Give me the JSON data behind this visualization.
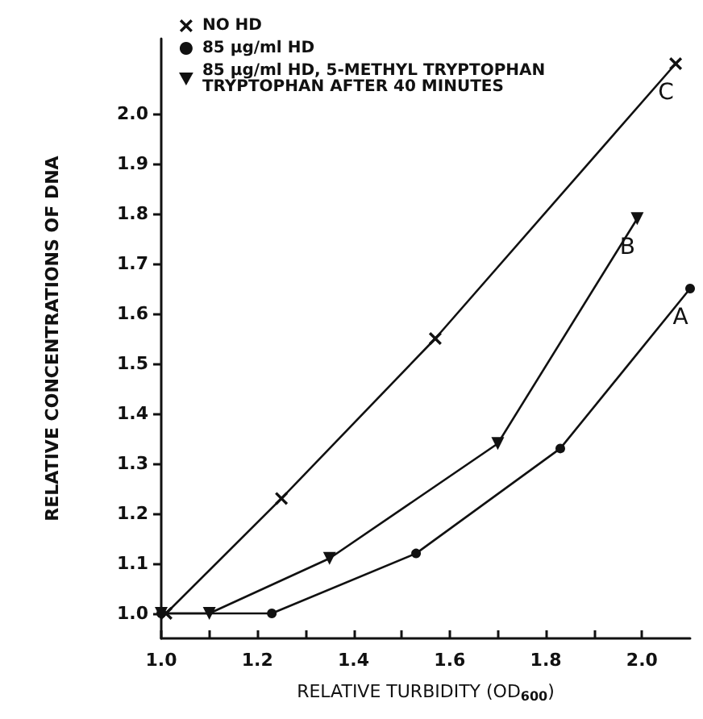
{
  "chart_data": {
    "type": "line",
    "xlabel": "RELATIVE TURBIDITY (OD$_{600}$)",
    "ylabel": "RELATIVE CONCENTRATIONS OF DNA",
    "series": [
      {
        "name": "NO HD",
        "color": "#111111",
        "marker": "cross",
        "x": [
          1.01,
          1.25,
          1.57,
          2.07
        ],
        "values": [
          1.0,
          1.23,
          1.55,
          2.1
        ]
      },
      {
        "name": "85 µg/ml HD",
        "color": "#111111",
        "marker": "circle",
        "x": [
          1.0,
          1.23,
          1.53,
          1.83,
          2.1
        ],
        "values": [
          1.0,
          1.0,
          1.12,
          1.33,
          1.65
        ]
      },
      {
        "name": "85 µg/ml HD, 5-METHYL TRYPTOPHAN\nTRYPTOPHAN AFTER 40 MINUTES",
        "color": "#111111",
        "marker": "triangle",
        "x": [
          1.0,
          1.1,
          1.35,
          1.7,
          1.99
        ],
        "values": [
          1.0,
          1.0,
          1.11,
          1.34,
          1.79
        ]
      }
    ],
    "annotations": [
      {
        "text": "C",
        "x": 2.07,
        "y": 2.1
      },
      {
        "text": "B",
        "x": 1.99,
        "y": 1.79
      },
      {
        "text": "A",
        "x": 2.1,
        "y": 1.65
      }
    ],
    "xlim": [
      1.0,
      2.1
    ],
    "xticks": [
      {
        "value": 1.0,
        "label": "1.0"
      },
      {
        "value": 1.1,
        "label": null
      },
      1.2,
      {
        "value": 1.3,
        "label": null
      },
      1.4,
      {
        "value": 1.5,
        "label": null
      },
      1.6,
      {
        "value": 1.7,
        "label": null
      },
      1.8,
      {
        "value": 1.9,
        "label": null
      },
      {
        "value": 2.0,
        "label": "2.0"
      }
    ],
    "ylim": [
      0.95,
      2.15
    ],
    "yticks": [
      {
        "value": 1.0,
        "label": "1.0"
      },
      1.1,
      1.2,
      1.3,
      1.4,
      1.5,
      1.6,
      1.7,
      1.8,
      1.9,
      {
        "value": 2.0,
        "label": "2.0"
      }
    ],
    "legend": "top left",
    "grid": false,
    "line_style": "solid"
  }
}
